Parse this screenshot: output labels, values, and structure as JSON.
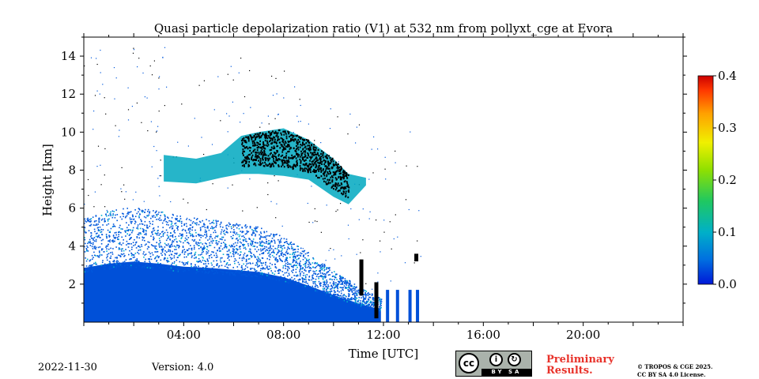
{
  "chart_data": {
    "type": "heatmap",
    "title": "Quasi particle depolarization ratio (V1) at 532 nm from pollyxt_cge at Evora",
    "xlabel": "Time [UTC]",
    "ylabel": "Height [km]",
    "xlim_hours": [
      0,
      24
    ],
    "ylim_km": [
      0,
      15
    ],
    "x_ticks": [
      {
        "hour": 4,
        "label": "04:00"
      },
      {
        "hour": 8,
        "label": "08:00"
      },
      {
        "hour": 12,
        "label": "12:00"
      },
      {
        "hour": 16,
        "label": "16:00"
      },
      {
        "hour": 20,
        "label": "20:00"
      }
    ],
    "y_ticks": [
      {
        "km": 2,
        "label": "2"
      },
      {
        "km": 4,
        "label": "4"
      },
      {
        "km": 6,
        "label": "6"
      },
      {
        "km": 8,
        "label": "8"
      },
      {
        "km": 10,
        "label": "10"
      },
      {
        "km": 12,
        "label": "12"
      },
      {
        "km": 14,
        "label": "14"
      }
    ],
    "colorbar": {
      "range": [
        0.0,
        0.4
      ],
      "ticks": [
        {
          "value": 0.0,
          "label": "0.0"
        },
        {
          "value": 0.1,
          "label": "0.1"
        },
        {
          "value": 0.2,
          "label": "0.2"
        },
        {
          "value": 0.3,
          "label": "0.3"
        },
        {
          "value": 0.4,
          "label": "0.4"
        }
      ],
      "colormap": [
        "#0000cc",
        "#0055dd",
        "#00a0c0",
        "#20c060",
        "#80e000",
        "#f0f000",
        "#ffa000",
        "#ff3000",
        "#cc0000"
      ]
    },
    "boundary_layer_top_km": [
      {
        "hour": 0.0,
        "km": 5.2
      },
      {
        "hour": 1.0,
        "km": 5.6
      },
      {
        "hour": 2.0,
        "km": 5.8
      },
      {
        "hour": 3.0,
        "km": 5.6
      },
      {
        "hour": 4.0,
        "km": 5.3
      },
      {
        "hour": 5.0,
        "km": 5.2
      },
      {
        "hour": 6.0,
        "km": 5.0
      },
      {
        "hour": 7.0,
        "km": 4.8
      },
      {
        "hour": 8.0,
        "km": 4.3
      },
      {
        "hour": 9.0,
        "km": 3.5
      },
      {
        "hour": 10.0,
        "km": 2.6
      },
      {
        "hour": 11.0,
        "km": 1.8
      },
      {
        "hour": 11.9,
        "km": 1.2
      }
    ],
    "aerosol_layer": [
      {
        "hour": 3.2,
        "bottom_km": 7.4,
        "top_km": 8.8
      },
      {
        "hour": 4.5,
        "bottom_km": 7.3,
        "top_km": 8.6
      },
      {
        "hour": 5.5,
        "bottom_km": 7.6,
        "top_km": 8.9
      },
      {
        "hour": 6.3,
        "bottom_km": 7.8,
        "top_km": 9.8
      },
      {
        "hour": 7.0,
        "bottom_km": 7.8,
        "top_km": 10.0
      },
      {
        "hour": 8.0,
        "bottom_km": 7.7,
        "top_km": 10.2
      },
      {
        "hour": 9.0,
        "bottom_km": 7.5,
        "top_km": 9.6
      },
      {
        "hour": 10.0,
        "bottom_km": 6.6,
        "top_km": 8.6
      },
      {
        "hour": 10.6,
        "bottom_km": 6.2,
        "top_km": 7.8
      },
      {
        "hour": 11.3,
        "bottom_km": 7.2,
        "top_km": 7.6
      }
    ],
    "high_depol_patches": [
      {
        "hour": 11.1,
        "bottom_km": 1.4,
        "top_km": 3.3
      },
      {
        "hour": 11.7,
        "bottom_km": 0.2,
        "top_km": 2.1
      },
      {
        "hour": 13.3,
        "bottom_km": 3.2,
        "top_km": 3.6
      }
    ],
    "data_end_hour": 13.5
  },
  "footer": {
    "date": "2022-11-30",
    "version": "Version: 4.0",
    "preliminary_line1": "Preliminary",
    "preliminary_line2": "Results.",
    "copyright_line1": "© TROPOS & CGE 2025.",
    "copyright_line2": "CC BY SA 4.0 License.",
    "cc_badge": {
      "cc": "cc",
      "by": "BY",
      "sa": "SA"
    }
  }
}
